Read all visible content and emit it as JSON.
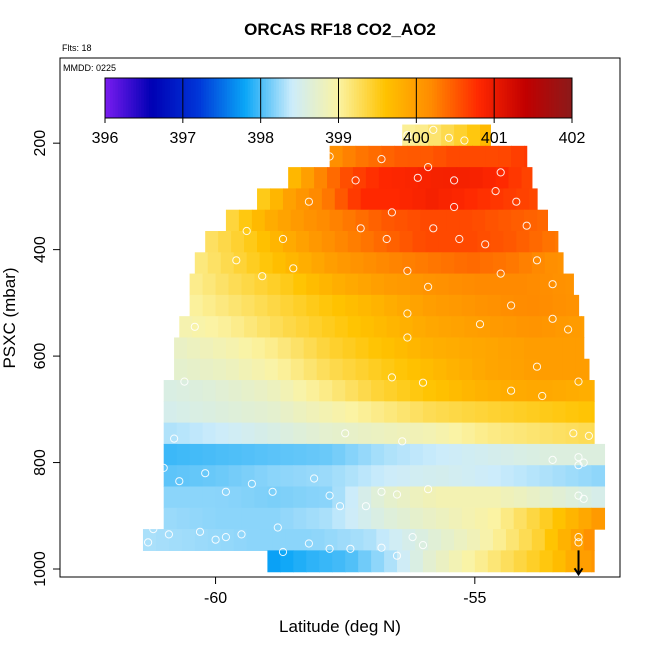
{
  "chart_data": {
    "type": "heatmap",
    "title": "ORCAS RF18 CO2_AO2",
    "flights_note": "Flts: 18",
    "date_note": "MMDD: 0225",
    "xlabel": "Latitude (deg N)",
    "ylabel": "PSXC (mbar)",
    "xlim": [
      -63.0,
      -52.2
    ],
    "ylim": [
      1015,
      40
    ],
    "x_ticks": [
      -60,
      -55
    ],
    "x_tick_labels": [
      "-60",
      "-55"
    ],
    "y_ticks": [
      200,
      400,
      600,
      800,
      1000
    ],
    "y_tick_labels": [
      "200",
      "400",
      "600",
      "800",
      "1000"
    ],
    "colorbar": {
      "min": 396,
      "max": 402,
      "ticks": [
        396,
        397,
        398,
        399,
        400,
        401,
        402
      ],
      "tick_labels": [
        "396",
        "397",
        "398",
        "399",
        "400",
        "401",
        "402"
      ],
      "colors": [
        "#7a1cf0",
        "#0000b4",
        "#0036d8",
        "#0aa6f7",
        "#ccecfb",
        "#fbf3a3",
        "#ffc300",
        "#ff8a00",
        "#ff2800",
        "#c20000",
        "#8b1a1a"
      ]
    },
    "grid_lat_step": 0.25,
    "grid_rows": [
      {
        "p": 185,
        "lat": [
          -56.4,
          -54.7
        ],
        "co2": [
          399.05,
          399.05,
          399.1,
          399.2,
          399.3,
          399.4,
          399.5,
          399.6,
          399.8
        ]
      },
      {
        "p": 225,
        "lat": [
          -57.8,
          -54.0
        ],
        "co2": [
          400.1,
          400.3,
          400.4,
          400.5,
          400.5,
          400.6,
          400.6,
          400.6,
          400.7
        ]
      },
      {
        "p": 265,
        "lat": [
          -58.6,
          -53.9
        ],
        "co2": [
          399.6,
          400.2,
          400.6,
          400.8,
          400.85,
          400.9,
          400.9,
          400.8,
          400.6
        ]
      },
      {
        "p": 305,
        "lat": [
          -59.2,
          -53.8
        ],
        "co2": [
          399.4,
          400.0,
          400.3,
          400.8,
          400.8,
          400.9,
          400.8,
          400.7,
          400.6
        ]
      },
      {
        "p": 345,
        "lat": [
          -59.8,
          -53.6
        ],
        "co2": [
          399.3,
          399.8,
          400.1,
          400.3,
          400.5,
          400.6,
          400.6,
          400.5,
          400.4
        ]
      },
      {
        "p": 385,
        "lat": [
          -60.2,
          -53.4
        ],
        "co2": [
          399.2,
          399.5,
          399.9,
          400.2,
          400.4,
          400.6,
          400.6,
          400.5,
          400.3
        ]
      },
      {
        "p": 425,
        "lat": [
          -60.4,
          -53.3
        ],
        "co2": [
          399.1,
          399.4,
          399.7,
          400.0,
          400.2,
          400.3,
          400.4,
          400.3,
          400.1
        ]
      },
      {
        "p": 465,
        "lat": [
          -60.5,
          -53.1
        ],
        "co2": [
          399.05,
          399.3,
          399.5,
          399.8,
          400.0,
          400.1,
          400.2,
          400.2,
          400.1
        ]
      },
      {
        "p": 505,
        "lat": [
          -60.5,
          -53.0
        ],
        "co2": [
          399.0,
          399.2,
          399.4,
          399.6,
          399.8,
          400.0,
          400.1,
          400.2,
          400.1
        ]
      },
      {
        "p": 545,
        "lat": [
          -60.7,
          -52.9
        ],
        "co2": [
          398.9,
          399.05,
          399.3,
          399.5,
          399.7,
          399.9,
          400.0,
          400.1,
          400.0
        ]
      },
      {
        "p": 585,
        "lat": [
          -60.8,
          -52.9
        ],
        "co2": [
          398.75,
          398.9,
          399.1,
          399.4,
          399.6,
          399.8,
          399.9,
          400.0,
          400.0
        ]
      },
      {
        "p": 625,
        "lat": [
          -60.8,
          -52.8
        ],
        "co2": [
          398.7,
          398.8,
          399.0,
          399.3,
          399.5,
          399.7,
          399.9,
          400.0,
          400.0
        ]
      },
      {
        "p": 665,
        "lat": [
          -61.0,
          -52.7
        ],
        "co2": [
          398.55,
          398.65,
          398.8,
          399.1,
          399.4,
          399.6,
          399.8,
          399.9,
          399.8
        ]
      },
      {
        "p": 705,
        "lat": [
          -61.0,
          -52.7
        ],
        "co2": [
          398.5,
          398.6,
          398.7,
          398.9,
          399.1,
          399.3,
          399.4,
          399.5,
          399.6
        ]
      },
      {
        "p": 745,
        "lat": [
          -61.0,
          -52.7
        ],
        "co2": [
          398.3,
          398.4,
          398.55,
          398.7,
          398.8,
          398.9,
          399.1,
          399.2,
          399.3
        ]
      },
      {
        "p": 785,
        "lat": [
          -61.0,
          -52.5
        ],
        "co2": [
          397.95,
          398.0,
          398.05,
          398.1,
          398.3,
          398.4,
          398.5,
          398.6,
          398.6
        ]
      },
      {
        "p": 825,
        "lat": [
          -61.0,
          -52.5
        ],
        "co2": [
          398.05,
          398.1,
          398.2,
          398.25,
          398.4,
          398.5,
          398.4,
          398.3,
          398.2
        ]
      },
      {
        "p": 865,
        "lat": [
          -61.0,
          -52.5
        ],
        "co2": [
          398.2,
          398.2,
          398.15,
          398.2,
          398.7,
          398.9,
          398.9,
          398.7,
          398.5
        ]
      },
      {
        "p": 905,
        "lat": [
          -61.0,
          -52.5
        ],
        "co2": [
          398.25,
          398.2,
          398.2,
          398.3,
          398.6,
          398.8,
          399.0,
          399.5,
          400.1
        ]
      },
      {
        "p": 945,
        "lat": [
          -61.4,
          -52.7
        ],
        "co2": [
          398.3,
          398.25,
          398.2,
          398.2,
          398.3,
          398.6,
          398.9,
          399.4,
          400.2
        ]
      },
      {
        "p": 985,
        "lat": [
          -59.0,
          -52.7
        ],
        "co2": [
          397.75,
          397.9,
          398.0,
          398.3,
          398.7,
          399.0,
          399.3,
          399.6,
          400.1
        ]
      }
    ],
    "observation_points": [
      {
        "lat": -57.5,
        "p": 190
      },
      {
        "lat": -57.2,
        "p": 175
      },
      {
        "lat": -56.3,
        "p": 185
      },
      {
        "lat": -55.8,
        "p": 175
      },
      {
        "lat": -55.5,
        "p": 190
      },
      {
        "lat": -55.2,
        "p": 195
      },
      {
        "lat": -54.6,
        "p": 180
      },
      {
        "lat": -57.8,
        "p": 225
      },
      {
        "lat": -56.8,
        "p": 230
      },
      {
        "lat": -55.9,
        "p": 245
      },
      {
        "lat": -54.5,
        "p": 255
      },
      {
        "lat": -57.3,
        "p": 270
      },
      {
        "lat": -56.1,
        "p": 265
      },
      {
        "lat": -55.4,
        "p": 270
      },
      {
        "lat": -54.6,
        "p": 290
      },
      {
        "lat": -58.2,
        "p": 310
      },
      {
        "lat": -56.6,
        "p": 330
      },
      {
        "lat": -55.4,
        "p": 320
      },
      {
        "lat": -54.2,
        "p": 310
      },
      {
        "lat": -57.2,
        "p": 360
      },
      {
        "lat": -55.8,
        "p": 360
      },
      {
        "lat": -54.0,
        "p": 355
      },
      {
        "lat": -59.4,
        "p": 365
      },
      {
        "lat": -58.7,
        "p": 380
      },
      {
        "lat": -56.7,
        "p": 380
      },
      {
        "lat": -55.3,
        "p": 380
      },
      {
        "lat": -54.8,
        "p": 390
      },
      {
        "lat": -59.6,
        "p": 420
      },
      {
        "lat": -58.5,
        "p": 435
      },
      {
        "lat": -56.3,
        "p": 440
      },
      {
        "lat": -54.5,
        "p": 445
      },
      {
        "lat": -53.8,
        "p": 420
      },
      {
        "lat": -59.1,
        "p": 450
      },
      {
        "lat": -55.9,
        "p": 470
      },
      {
        "lat": -53.5,
        "p": 465
      },
      {
        "lat": -54.3,
        "p": 505
      },
      {
        "lat": -60.4,
        "p": 545
      },
      {
        "lat": -56.3,
        "p": 520
      },
      {
        "lat": -54.9,
        "p": 540
      },
      {
        "lat": -53.5,
        "p": 530
      },
      {
        "lat": -53.2,
        "p": 550
      },
      {
        "lat": -56.3,
        "p": 565
      },
      {
        "lat": -53.8,
        "p": 620
      },
      {
        "lat": -60.6,
        "p": 648
      },
      {
        "lat": -56.6,
        "p": 640
      },
      {
        "lat": -56.0,
        "p": 650
      },
      {
        "lat": -53.7,
        "p": 675
      },
      {
        "lat": -53.0,
        "p": 648
      },
      {
        "lat": -54.3,
        "p": 665
      },
      {
        "lat": -57.5,
        "p": 745
      },
      {
        "lat": -56.4,
        "p": 760
      },
      {
        "lat": -60.8,
        "p": 755
      },
      {
        "lat": -53.1,
        "p": 745
      },
      {
        "lat": -52.8,
        "p": 750
      },
      {
        "lat": -61.0,
        "p": 810
      },
      {
        "lat": -60.7,
        "p": 835
      },
      {
        "lat": -60.2,
        "p": 820
      },
      {
        "lat": -59.3,
        "p": 840
      },
      {
        "lat": -59.8,
        "p": 855
      },
      {
        "lat": -58.9,
        "p": 855
      },
      {
        "lat": -57.8,
        "p": 862
      },
      {
        "lat": -58.1,
        "p": 830
      },
      {
        "lat": -57.1,
        "p": 882
      },
      {
        "lat": -56.8,
        "p": 855
      },
      {
        "lat": -56.5,
        "p": 860
      },
      {
        "lat": -55.9,
        "p": 850
      },
      {
        "lat": -53.5,
        "p": 795
      },
      {
        "lat": -52.9,
        "p": 800
      },
      {
        "lat": -53.0,
        "p": 790
      },
      {
        "lat": -53.0,
        "p": 805
      },
      {
        "lat": -61.1,
        "p": 860
      },
      {
        "lat": -53.0,
        "p": 862
      },
      {
        "lat": -52.9,
        "p": 868
      },
      {
        "lat": -61.2,
        "p": 925
      },
      {
        "lat": -60.9,
        "p": 935
      },
      {
        "lat": -60.3,
        "p": 930
      },
      {
        "lat": -59.5,
        "p": 935
      },
      {
        "lat": -58.8,
        "p": 922
      },
      {
        "lat": -58.2,
        "p": 952
      },
      {
        "lat": -57.8,
        "p": 962
      },
      {
        "lat": -57.4,
        "p": 962
      },
      {
        "lat": -56.8,
        "p": 960
      },
      {
        "lat": -56.5,
        "p": 975
      },
      {
        "lat": -56.2,
        "p": 940
      },
      {
        "lat": -56.0,
        "p": 955
      },
      {
        "lat": -61.3,
        "p": 950
      },
      {
        "lat": -60.0,
        "p": 945
      },
      {
        "lat": -59.8,
        "p": 940
      },
      {
        "lat": -58.7,
        "p": 968
      },
      {
        "lat": -53.0,
        "p": 940
      },
      {
        "lat": -53.0,
        "p": 950
      },
      {
        "lat": -57.6,
        "p": 882
      }
    ],
    "arrow": {
      "lat": -53.0,
      "p_from": 965,
      "p_to": 1010
    }
  }
}
